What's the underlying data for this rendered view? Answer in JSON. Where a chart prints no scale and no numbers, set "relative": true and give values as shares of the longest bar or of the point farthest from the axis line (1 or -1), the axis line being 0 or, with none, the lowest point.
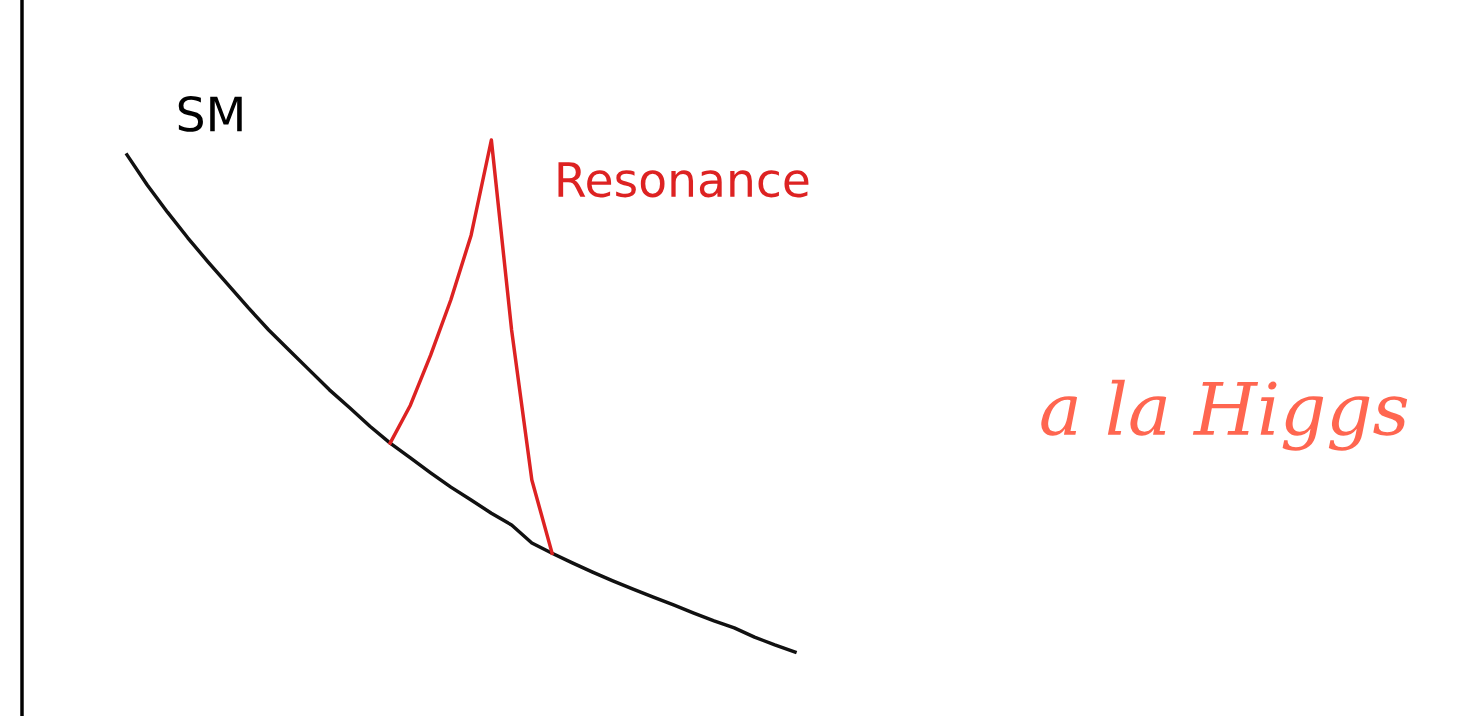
{
  "chart_data": {
    "type": "line",
    "relative": true,
    "legend": false,
    "marker": "none",
    "line_style": "solid",
    "categories": [
      null,
      null,
      null,
      null,
      null,
      null,
      null,
      null,
      null,
      null,
      null,
      null,
      null,
      null,
      null,
      null,
      null,
      null,
      null,
      null,
      null,
      null,
      null,
      null,
      null,
      null,
      null,
      null,
      null,
      null,
      null,
      null,
      null,
      null
    ],
    "series": [
      {
        "name": "SM",
        "color": "#111111",
        "values": [
          0.971,
          0.912,
          0.859,
          0.809,
          0.762,
          0.717,
          0.672,
          0.629,
          0.59,
          0.551,
          0.512,
          0.477,
          0.441,
          0.408,
          0.379,
          0.35,
          0.322,
          0.297,
          0.271,
          0.248,
          0.213,
          0.193,
          0.174,
          0.156,
          0.139,
          0.123,
          0.107,
          0.092,
          0.076,
          0.061,
          0.047,
          0.029,
          0.014,
          0
        ]
      },
      {
        "name": "Resonance",
        "color": "#dd2222",
        "values": [
          null,
          null,
          null,
          null,
          null,
          null,
          null,
          null,
          null,
          null,
          null,
          null,
          null,
          0.408,
          0.482,
          0.58,
          0.688,
          0.814,
          1.0,
          0.629,
          0.336,
          0.193,
          null,
          null,
          null,
          null,
          null,
          null,
          null,
          null,
          null,
          null,
          null,
          null
        ]
      }
    ],
    "annotations": [
      "a la Higgs"
    ]
  }
}
